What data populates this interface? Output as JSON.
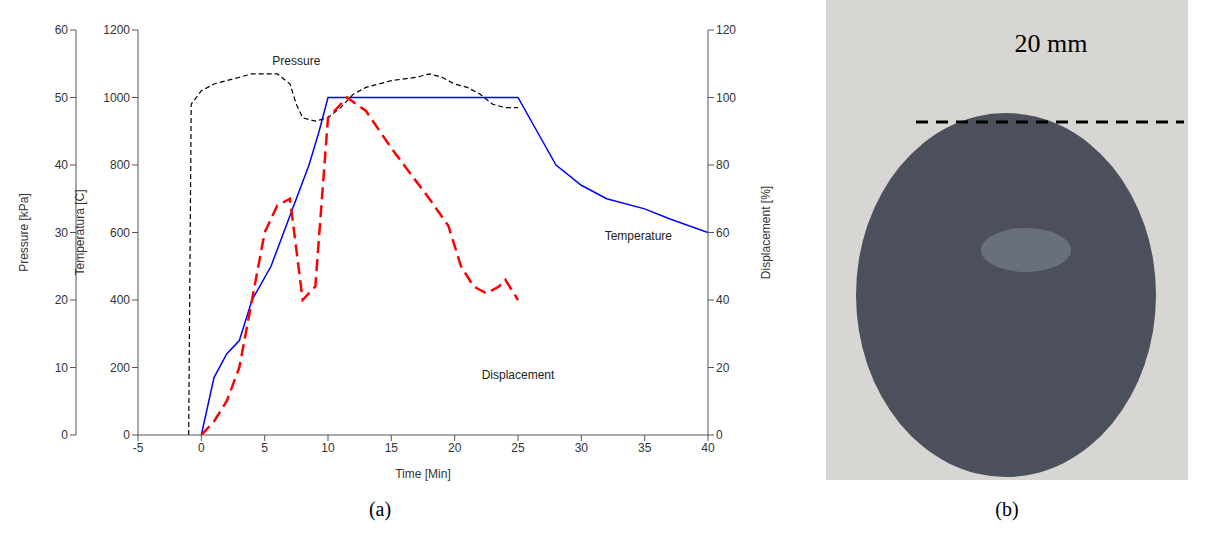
{
  "chart_data": {
    "type": "line",
    "panel_label": "(a)",
    "xlabel": "Time [Min]",
    "ylabel": "Temperatura [C]",
    "y2label": "Pressure [kPa]",
    "y3label": "Displacement [%]",
    "xlim": [
      -5,
      40
    ],
    "xticks": [
      -5,
      0,
      5,
      10,
      15,
      20,
      25,
      30,
      35,
      40
    ],
    "ylim": [
      0,
      1200
    ],
    "yticks": [
      0,
      200,
      400,
      600,
      800,
      1000,
      1200
    ],
    "y2lim": [
      0,
      60
    ],
    "y2ticks": [
      0,
      10,
      20,
      30,
      40,
      50,
      60
    ],
    "y3lim": [
      0,
      120
    ],
    "y3ticks": [
      0,
      20,
      40,
      60,
      80,
      100,
      120
    ],
    "grid": false,
    "series": [
      {
        "name": "Pressure",
        "color": "#000000",
        "line_style": "dashed",
        "axis": "y2",
        "x": [
          -1,
          -0.8,
          0,
          1,
          2,
          3,
          4,
          6,
          7,
          7.5,
          8,
          9,
          10,
          11,
          12,
          13,
          15,
          17,
          18,
          19,
          20,
          21,
          22,
          23,
          24,
          25
        ],
        "values": [
          0,
          49,
          51,
          52,
          52.5,
          53,
          53.5,
          53.5,
          52,
          49,
          47,
          46.5,
          47,
          48.5,
          50.5,
          51.5,
          52.5,
          53,
          53.5,
          53,
          52,
          51.5,
          50.5,
          49,
          48.5,
          48.5
        ]
      },
      {
        "name": "Temperature",
        "color": "#0000ff",
        "line_style": "solid",
        "axis": "y",
        "x": [
          0,
          1,
          2,
          3,
          4,
          5.5,
          6.5,
          7.5,
          8.5,
          9.3,
          10,
          25,
          26.5,
          28,
          30,
          32,
          35,
          37,
          40
        ],
        "values": [
          0,
          170,
          240,
          280,
          400,
          500,
          600,
          700,
          800,
          900,
          1000,
          1000,
          900,
          800,
          740,
          700,
          670,
          640,
          600
        ]
      },
      {
        "name": "Displacement",
        "color": "#ff0000",
        "line_style": "long_dashed",
        "axis": "y3",
        "x": [
          0,
          1,
          2,
          3,
          4,
          5,
          6,
          7,
          8,
          9,
          10,
          11,
          11.5,
          13,
          15,
          17,
          18,
          19.5,
          20.5,
          21.5,
          22.5,
          23.5,
          24,
          25
        ],
        "values": [
          0,
          4,
          10,
          20,
          40,
          60,
          68,
          70,
          40,
          44,
          94,
          98,
          100,
          96,
          85,
          75,
          70,
          62,
          50,
          44,
          42,
          44,
          46,
          40
        ]
      }
    ],
    "annotations": [
      {
        "text": "Pressure",
        "x": 7.5,
        "y": 1110
      },
      {
        "text": "Temperature",
        "x": 34.5,
        "y": 590
      },
      {
        "text": "Displacement",
        "x": 25,
        "y": 180
      }
    ]
  },
  "photo": {
    "scale_label": "20 mm",
    "panel_label": "(b)"
  }
}
